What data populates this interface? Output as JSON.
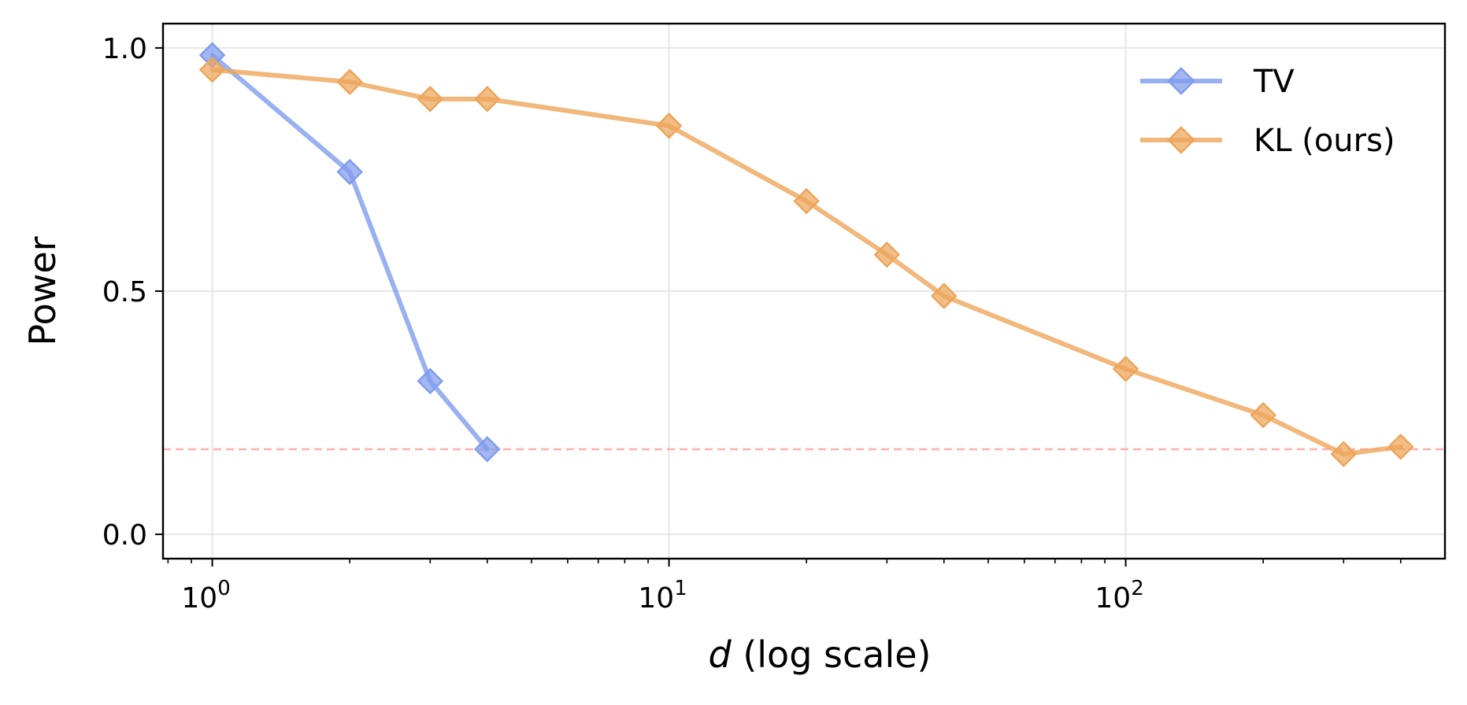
{
  "chart_data": {
    "type": "line",
    "title": "",
    "xlabel_var": "d",
    "xlabel_rest": " (log scale)",
    "ylabel": "Power",
    "xscale": "log",
    "xlim": [
      0.78,
      500
    ],
    "ylim": [
      -0.05,
      1.05
    ],
    "x_ticks": [
      {
        "value": 1,
        "base": "10",
        "exp": "0"
      },
      {
        "value": 10,
        "base": "10",
        "exp": "1"
      },
      {
        "value": 100,
        "base": "10",
        "exp": "2"
      }
    ],
    "y_ticks": [
      {
        "value": 0.0,
        "label": "0.0"
      },
      {
        "value": 0.5,
        "label": "0.5"
      },
      {
        "value": 1.0,
        "label": "1.0"
      }
    ],
    "grid": true,
    "legend_position": "top-right",
    "reference_line": {
      "y": 0.175,
      "style": "dashed",
      "color": "#ff9999"
    },
    "series": [
      {
        "name": "TV",
        "color": "#7f9ced",
        "marker": "diamond",
        "x": [
          1,
          2,
          3,
          4
        ],
        "y": [
          0.985,
          0.745,
          0.315,
          0.175
        ]
      },
      {
        "name": "KL (ours)",
        "color": "#eda55a",
        "marker": "diamond",
        "x": [
          1,
          2,
          3,
          4,
          10,
          20,
          30,
          40,
          100,
          200,
          300,
          400
        ],
        "y": [
          0.955,
          0.93,
          0.895,
          0.895,
          0.84,
          0.685,
          0.575,
          0.49,
          0.34,
          0.245,
          0.165,
          0.18
        ]
      }
    ]
  }
}
